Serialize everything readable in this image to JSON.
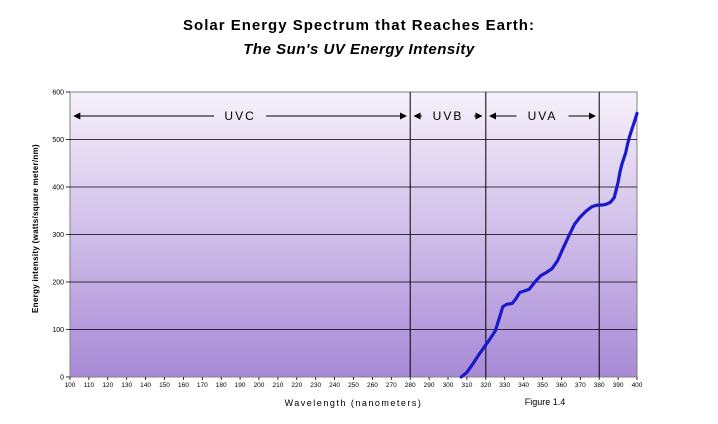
{
  "chart_data": {
    "type": "line",
    "title": "Solar Energy Spectrum that Reaches Earth:",
    "subtitle": "The Sun's UV Energy Intensity",
    "xlabel": "Wavelength (nanometers)",
    "ylabel": "Energy intensity (watts/square meter/nm)",
    "xlim": [
      100,
      400
    ],
    "ylim": [
      0,
      600
    ],
    "xticks": [
      100,
      110,
      120,
      130,
      140,
      150,
      160,
      170,
      180,
      190,
      200,
      210,
      220,
      230,
      240,
      250,
      260,
      270,
      280,
      290,
      300,
      310,
      320,
      330,
      340,
      350,
      360,
      370,
      380,
      390,
      400
    ],
    "yticks": [
      0,
      100,
      200,
      300,
      400,
      500,
      600
    ],
    "grid": "horizontal",
    "line_color": "#1a1acc",
    "background_gradient": [
      "#f6f1fb",
      "#a88ad6"
    ],
    "bands": [
      {
        "label": "UVC",
        "start": 100,
        "end": 280
      },
      {
        "label": "UVB",
        "start": 280,
        "end": 320
      },
      {
        "label": "UVA",
        "start": 320,
        "end": 380
      }
    ],
    "band_dividers": [
      280,
      320,
      380
    ],
    "series": [
      {
        "x": [
          307,
          310,
          313,
          316,
          319,
          322,
          325,
          327,
          329,
          331,
          334,
          336,
          338,
          341,
          343,
          346,
          349,
          352,
          355,
          358,
          361,
          364,
          367,
          370,
          373,
          376,
          378,
          380,
          382,
          384,
          386,
          388,
          390,
          391,
          392,
          393,
          394,
          395,
          396,
          397,
          398,
          399,
          400
        ],
        "y": [
          0,
          10,
          27,
          45,
          62,
          79,
          97,
          122,
          148,
          153,
          155,
          165,
          178,
          182,
          185,
          200,
          213,
          220,
          228,
          245,
          272,
          298,
          322,
          337,
          349,
          358,
          361,
          362,
          362,
          364,
          368,
          378,
          410,
          432,
          448,
          460,
          472,
          490,
          505,
          518,
          530,
          542,
          555
        ]
      }
    ],
    "annotation": "Figure 1.4"
  }
}
